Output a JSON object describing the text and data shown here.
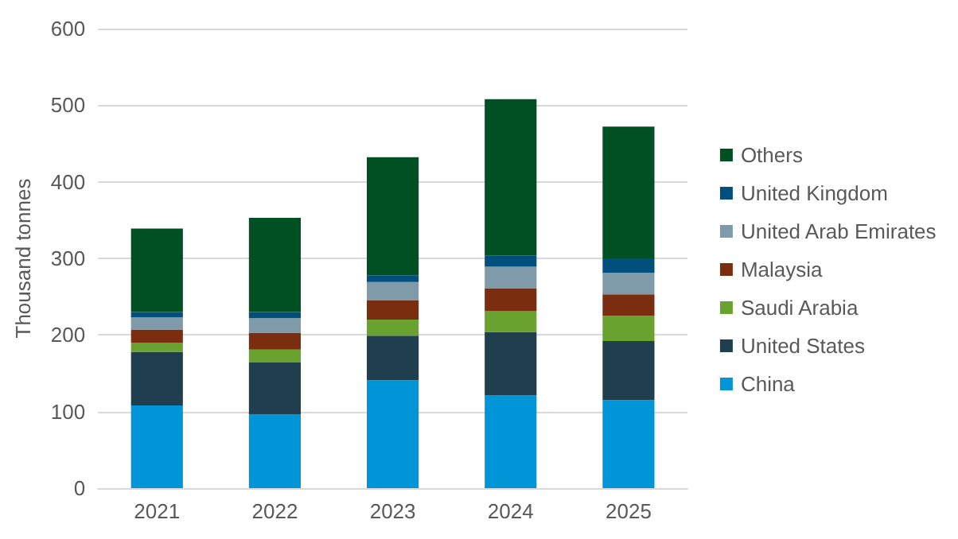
{
  "chart_data": {
    "type": "bar",
    "stacked": true,
    "ylabel": "Thousand tonnes",
    "categories": [
      "2021",
      "2022",
      "2023",
      "2024",
      "2025"
    ],
    "series": [
      {
        "name": "China",
        "color": "#0095d7",
        "values": [
          108,
          96,
          141,
          121,
          115
        ]
      },
      {
        "name": "United States",
        "color": "#1f3f4f",
        "values": [
          70,
          68,
          58,
          83,
          77
        ]
      },
      {
        "name": "Saudi Arabia",
        "color": "#6aa22f",
        "values": [
          12,
          17,
          21,
          27,
          33
        ]
      },
      {
        "name": "Malaysia",
        "color": "#7a2e0f",
        "values": [
          17,
          22,
          25,
          30,
          28
        ]
      },
      {
        "name": "United Arab Emirates",
        "color": "#7f9aa8",
        "values": [
          16,
          19,
          24,
          28,
          28
        ]
      },
      {
        "name": "United Kingdom",
        "color": "#004f7c",
        "values": [
          7,
          8,
          9,
          15,
          19
        ]
      },
      {
        "name": "Others",
        "color": "#005024",
        "values": [
          109,
          123,
          154,
          204,
          172
        ]
      }
    ],
    "ylim": [
      0,
      600
    ],
    "yticks": [
      0,
      100,
      200,
      300,
      400,
      500,
      600
    ],
    "grid": "y",
    "legend": "right"
  }
}
